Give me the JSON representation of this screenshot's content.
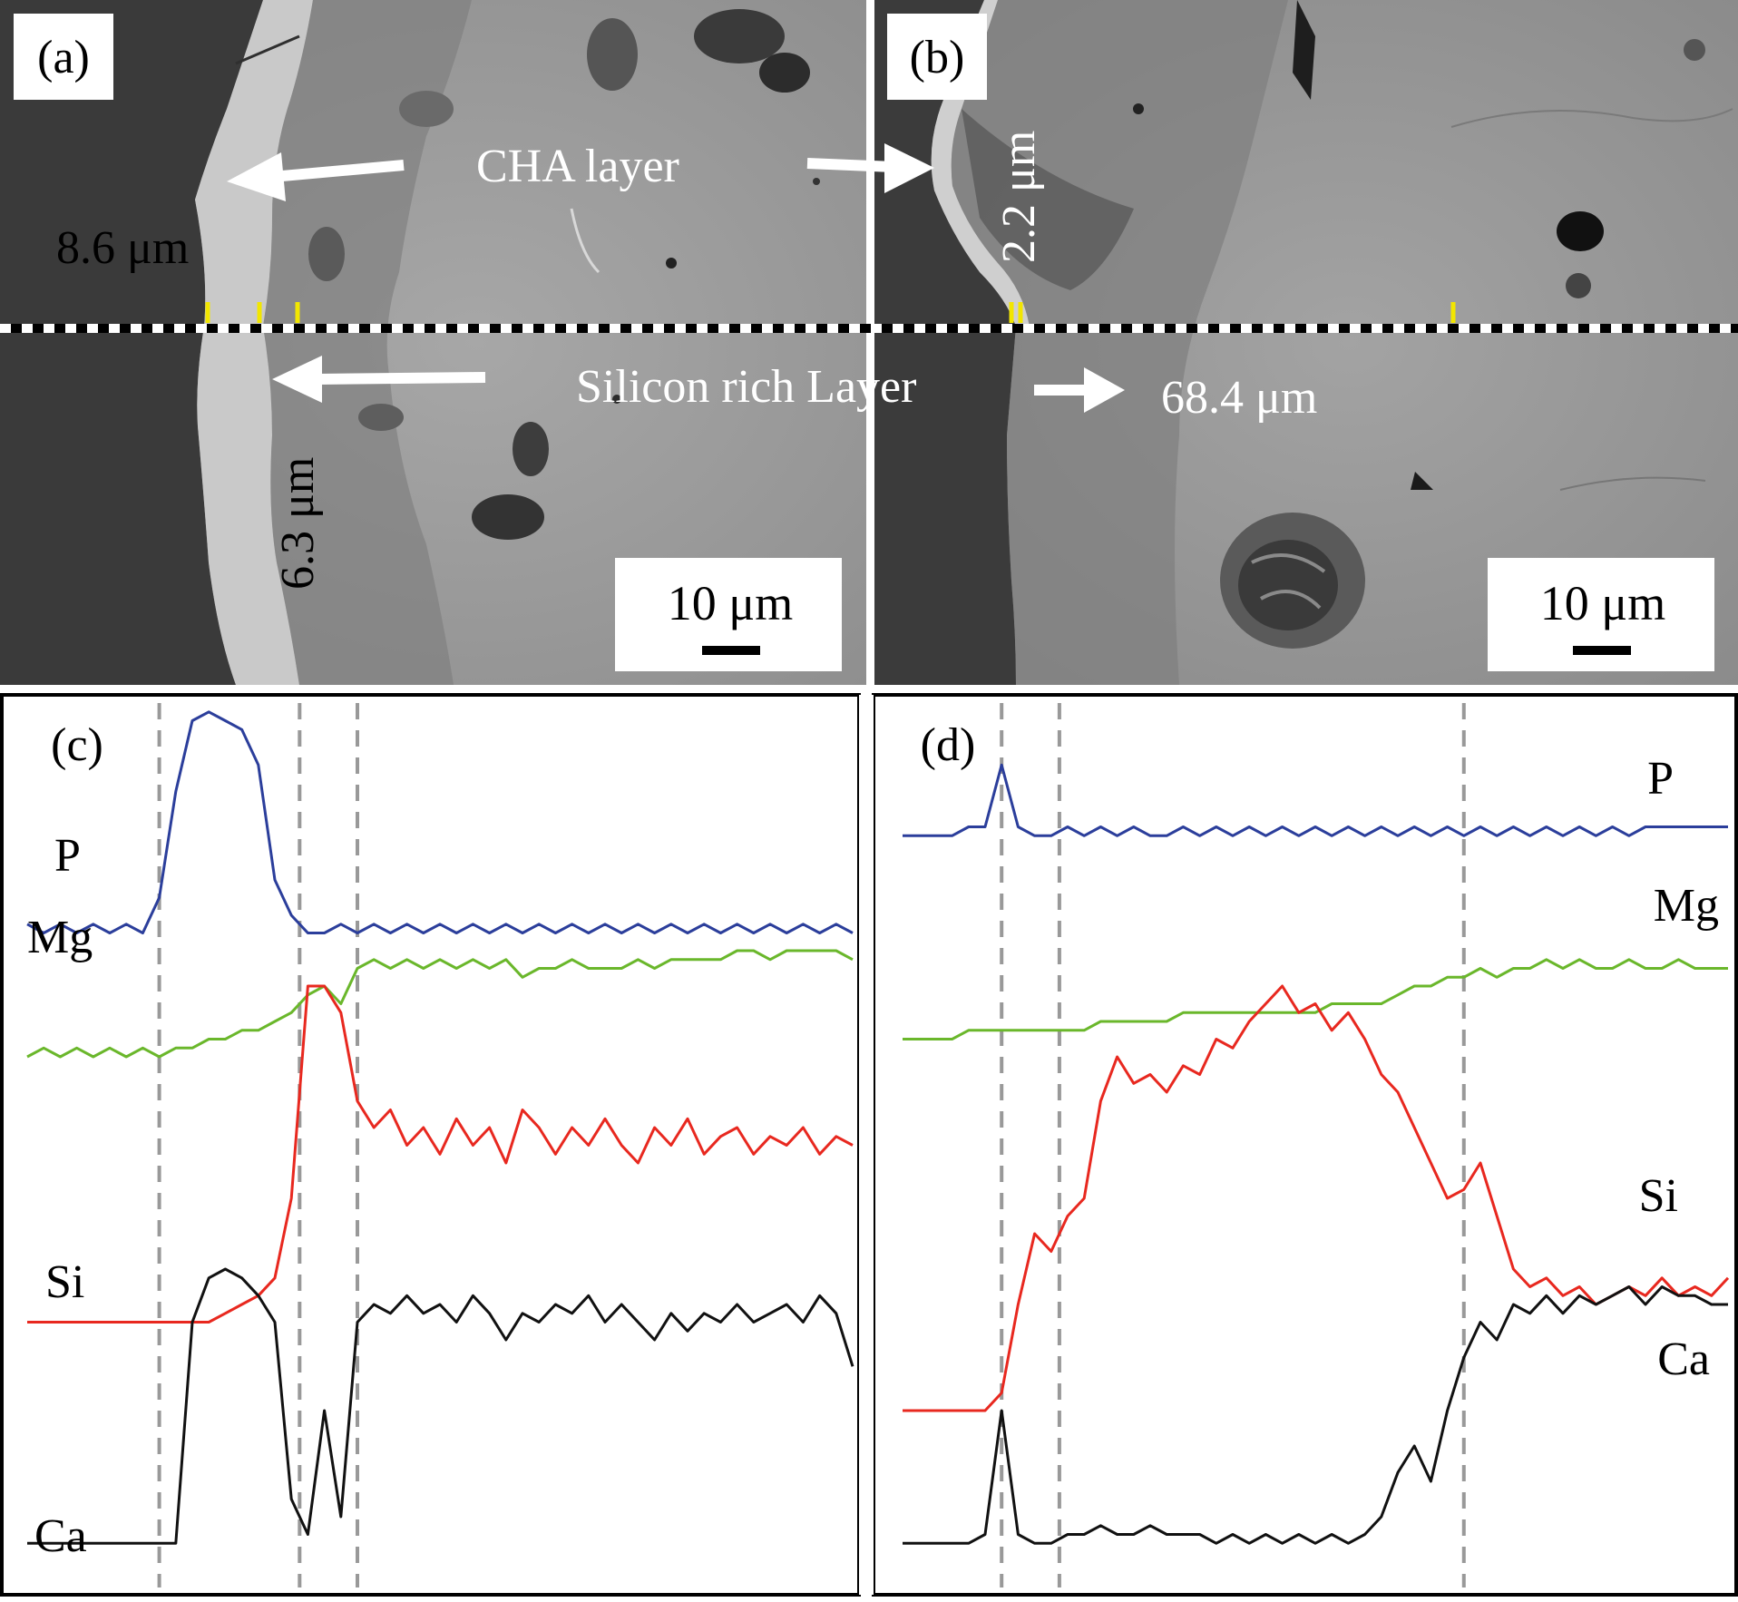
{
  "figure": {
    "panels": {
      "a": {
        "label": "(a)"
      },
      "b": {
        "label": "(b)"
      },
      "c": {
        "label": "(c)"
      },
      "d": {
        "label": "(d)"
      }
    },
    "annotations": {
      "cha_layer": "CHA layer",
      "silicon_rich_layer": "Silicon rich Layer",
      "a_cha_thickness": "8.6 μm",
      "a_si_thickness": "6.3 μm",
      "b_cha_thickness": "2.2 μm",
      "b_si_thickness": "68.4 μm"
    },
    "scale_bars": {
      "a": "10 μm",
      "b": "10 μm"
    }
  },
  "chart_data": [
    {
      "type": "line",
      "panel": "(c)",
      "x": [
        0,
        2,
        4,
        6,
        8,
        10,
        12,
        14,
        16,
        18,
        20,
        22,
        24,
        26,
        28,
        30,
        32,
        34,
        36,
        38,
        40,
        42,
        44,
        46,
        48,
        50,
        52,
        54,
        56,
        58,
        60,
        62,
        64,
        66,
        68,
        70,
        72,
        74,
        76,
        78,
        80,
        82,
        84,
        86,
        88,
        90,
        92,
        94,
        96,
        98,
        100
      ],
      "series": [
        {
          "name": "P",
          "color": "#2b3e9b",
          "values": [
            0.75,
            0.74,
            0.75,
            0.74,
            0.75,
            0.74,
            0.75,
            0.74,
            0.78,
            0.9,
            0.98,
            0.99,
            0.98,
            0.97,
            0.93,
            0.8,
            0.76,
            0.74,
            0.74,
            0.75,
            0.74,
            0.75,
            0.74,
            0.75,
            0.74,
            0.75,
            0.74,
            0.75,
            0.74,
            0.75,
            0.74,
            0.75,
            0.74,
            0.75,
            0.74,
            0.75,
            0.74,
            0.75,
            0.74,
            0.75,
            0.74,
            0.75,
            0.74,
            0.75,
            0.74,
            0.75,
            0.74,
            0.75,
            0.74,
            0.75,
            0.74
          ]
        },
        {
          "name": "Mg",
          "color": "#6ab72b",
          "values": [
            0.6,
            0.61,
            0.6,
            0.61,
            0.6,
            0.61,
            0.6,
            0.61,
            0.6,
            0.61,
            0.61,
            0.62,
            0.62,
            0.63,
            0.63,
            0.64,
            0.65,
            0.67,
            0.68,
            0.66,
            0.7,
            0.71,
            0.7,
            0.71,
            0.7,
            0.71,
            0.7,
            0.71,
            0.7,
            0.71,
            0.69,
            0.7,
            0.7,
            0.71,
            0.7,
            0.7,
            0.7,
            0.71,
            0.7,
            0.71,
            0.71,
            0.71,
            0.71,
            0.72,
            0.72,
            0.71,
            0.72,
            0.72,
            0.72,
            0.72,
            0.71
          ]
        },
        {
          "name": "Si",
          "color": "#e8281f",
          "values": [
            0.3,
            0.3,
            0.3,
            0.3,
            0.3,
            0.3,
            0.3,
            0.3,
            0.3,
            0.3,
            0.3,
            0.3,
            0.31,
            0.32,
            0.33,
            0.35,
            0.44,
            0.68,
            0.68,
            0.65,
            0.55,
            0.52,
            0.54,
            0.5,
            0.52,
            0.49,
            0.53,
            0.5,
            0.52,
            0.48,
            0.54,
            0.52,
            0.49,
            0.52,
            0.5,
            0.53,
            0.5,
            0.48,
            0.52,
            0.5,
            0.53,
            0.49,
            0.51,
            0.52,
            0.49,
            0.51,
            0.5,
            0.52,
            0.49,
            0.51,
            0.5
          ]
        },
        {
          "name": "Ca",
          "color": "#111111",
          "values": [
            0.05,
            0.05,
            0.05,
            0.05,
            0.05,
            0.05,
            0.05,
            0.05,
            0.05,
            0.05,
            0.3,
            0.35,
            0.36,
            0.35,
            0.33,
            0.3,
            0.1,
            0.06,
            0.2,
            0.08,
            0.3,
            0.32,
            0.31,
            0.33,
            0.31,
            0.32,
            0.3,
            0.33,
            0.31,
            0.28,
            0.31,
            0.3,
            0.32,
            0.31,
            0.33,
            0.3,
            0.32,
            0.3,
            0.28,
            0.31,
            0.29,
            0.31,
            0.3,
            0.32,
            0.3,
            0.31,
            0.32,
            0.3,
            0.33,
            0.31,
            0.25
          ]
        }
      ],
      "vertical_markers": [
        16,
        33,
        40
      ]
    },
    {
      "type": "line",
      "panel": "(d)",
      "x": [
        0,
        2,
        4,
        6,
        8,
        10,
        12,
        14,
        16,
        18,
        20,
        22,
        24,
        26,
        28,
        30,
        32,
        34,
        36,
        38,
        40,
        42,
        44,
        46,
        48,
        50,
        52,
        54,
        56,
        58,
        60,
        62,
        64,
        66,
        68,
        70,
        72,
        74,
        76,
        78,
        80,
        82,
        84,
        86,
        88,
        90,
        92,
        94,
        96,
        98,
        100
      ],
      "series": [
        {
          "name": "P",
          "color": "#2b3e9b",
          "values": [
            0.85,
            0.85,
            0.85,
            0.85,
            0.86,
            0.86,
            0.93,
            0.86,
            0.85,
            0.85,
            0.86,
            0.85,
            0.86,
            0.85,
            0.86,
            0.85,
            0.85,
            0.86,
            0.85,
            0.86,
            0.85,
            0.86,
            0.85,
            0.86,
            0.85,
            0.86,
            0.85,
            0.86,
            0.85,
            0.86,
            0.85,
            0.86,
            0.85,
            0.86,
            0.85,
            0.86,
            0.85,
            0.86,
            0.85,
            0.86,
            0.85,
            0.86,
            0.85,
            0.86,
            0.85,
            0.86,
            0.86,
            0.86,
            0.86,
            0.86,
            0.86
          ]
        },
        {
          "name": "Mg",
          "color": "#6ab72b",
          "values": [
            0.62,
            0.62,
            0.62,
            0.62,
            0.63,
            0.63,
            0.63,
            0.63,
            0.63,
            0.63,
            0.63,
            0.63,
            0.64,
            0.64,
            0.64,
            0.64,
            0.64,
            0.65,
            0.65,
            0.65,
            0.65,
            0.65,
            0.65,
            0.65,
            0.65,
            0.65,
            0.66,
            0.66,
            0.66,
            0.66,
            0.67,
            0.68,
            0.68,
            0.69,
            0.69,
            0.7,
            0.69,
            0.7,
            0.7,
            0.71,
            0.7,
            0.71,
            0.7,
            0.7,
            0.71,
            0.7,
            0.7,
            0.71,
            0.7,
            0.7,
            0.7
          ]
        },
        {
          "name": "Si",
          "color": "#e8281f",
          "values": [
            0.2,
            0.2,
            0.2,
            0.2,
            0.2,
            0.2,
            0.22,
            0.32,
            0.4,
            0.38,
            0.42,
            0.44,
            0.55,
            0.6,
            0.57,
            0.58,
            0.56,
            0.59,
            0.58,
            0.62,
            0.61,
            0.64,
            0.66,
            0.68,
            0.65,
            0.66,
            0.63,
            0.65,
            0.62,
            0.58,
            0.56,
            0.52,
            0.48,
            0.44,
            0.45,
            0.48,
            0.42,
            0.36,
            0.34,
            0.35,
            0.33,
            0.34,
            0.32,
            0.33,
            0.34,
            0.33,
            0.35,
            0.33,
            0.34,
            0.33,
            0.35
          ]
        },
        {
          "name": "Ca",
          "color": "#111111",
          "values": [
            0.05,
            0.05,
            0.05,
            0.05,
            0.05,
            0.06,
            0.2,
            0.06,
            0.05,
            0.05,
            0.06,
            0.06,
            0.07,
            0.06,
            0.06,
            0.07,
            0.06,
            0.06,
            0.06,
            0.05,
            0.06,
            0.05,
            0.06,
            0.05,
            0.06,
            0.05,
            0.06,
            0.05,
            0.06,
            0.08,
            0.13,
            0.16,
            0.12,
            0.2,
            0.26,
            0.3,
            0.28,
            0.32,
            0.31,
            0.33,
            0.31,
            0.33,
            0.32,
            0.33,
            0.34,
            0.32,
            0.34,
            0.33,
            0.33,
            0.32,
            0.32
          ]
        }
      ],
      "vertical_markers": [
        12,
        19,
        68
      ]
    }
  ]
}
